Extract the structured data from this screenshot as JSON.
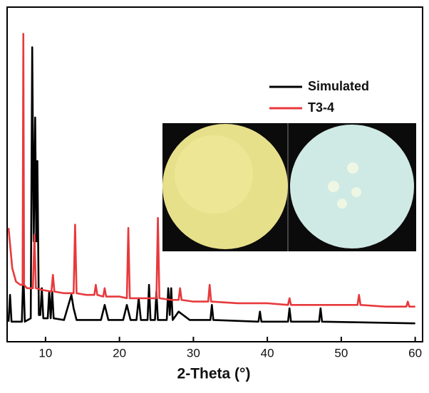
{
  "chart_data": {
    "type": "line",
    "x_label": "2-Theta (°)",
    "xlim": [
      5,
      61
    ],
    "xticks": [
      10,
      20,
      30,
      40,
      50,
      60
    ],
    "ylim": [
      0,
      100
    ],
    "legend": "upper right",
    "series": [
      {
        "name": "Simulated",
        "color": "#000000",
        "x": [
          5,
          5.2,
          5.4,
          5.7,
          6.8,
          7.0,
          7.2,
          8.0,
          8.2,
          8.4,
          8.6,
          8.75,
          8.9,
          9.1,
          9.3,
          9.5,
          9.7,
          10.3,
          10.5,
          10.7,
          10.9,
          11.1,
          12.5,
          13.5,
          13.8,
          14.2,
          17.5,
          18.0,
          18.5,
          20.5,
          21.0,
          21.5,
          22.3,
          22.6,
          22.9,
          23.8,
          24.0,
          24.2,
          24.8,
          25.0,
          25.2,
          26.4,
          26.6,
          26.8,
          27.0,
          27.2,
          28.0,
          29.5,
          30,
          32.3,
          32.5,
          32.7,
          38.8,
          39.0,
          39.2,
          42.8,
          43.0,
          43.2,
          47.0,
          47.2,
          47.4,
          60
        ],
        "values": [
          6,
          14,
          6,
          6,
          6,
          21,
          6,
          7,
          88,
          30,
          67,
          30,
          54,
          8,
          8,
          16,
          7,
          7,
          15,
          7,
          15,
          7,
          6.5,
          14,
          10,
          6.5,
          6.5,
          11,
          6.5,
          6.5,
          11,
          6.5,
          6.5,
          13,
          6.5,
          6.5,
          17,
          6.5,
          6.5,
          15,
          6.5,
          6.5,
          16,
          8,
          16,
          6.5,
          9,
          6.5,
          6.5,
          6.5,
          11,
          6.5,
          6,
          9,
          6,
          6,
          10,
          6,
          6,
          10,
          6,
          5.5
        ]
      },
      {
        "name": "T3-4",
        "color": "#e8393c",
        "x": [
          5,
          5.5,
          6,
          6.6,
          6.9,
          7.0,
          7.1,
          7.5,
          8.3,
          8.5,
          8.7,
          9.5,
          10.8,
          11.0,
          11.2,
          12.5,
          13.8,
          14.0,
          14.2,
          15.5,
          16.6,
          16.8,
          17.0,
          17.8,
          18.0,
          18.2,
          20.0,
          21.0,
          21.2,
          21.4,
          23.0,
          25.0,
          25.2,
          25.4,
          27.0,
          28.0,
          28.2,
          28.4,
          30.0,
          32.0,
          32.2,
          32.4,
          36,
          40,
          42.8,
          43.0,
          43.2,
          48,
          52.2,
          52.4,
          52.6,
          56,
          58.8,
          59.0,
          59.2,
          60
        ],
        "values": [
          34,
          22,
          18,
          17,
          17,
          92,
          17,
          16,
          16,
          32,
          16,
          15.5,
          15,
          20,
          15,
          14.5,
          14.5,
          35,
          14.5,
          14,
          14,
          17,
          14,
          13.5,
          16,
          13.5,
          13.5,
          13,
          34,
          13,
          13,
          13,
          37,
          13,
          12.5,
          12.5,
          16,
          12.5,
          12,
          12,
          17,
          12,
          11.5,
          11.5,
          11,
          13,
          11,
          11,
          11,
          14,
          11,
          10.5,
          10.5,
          12,
          10.5,
          10.5
        ]
      }
    ]
  }
}
